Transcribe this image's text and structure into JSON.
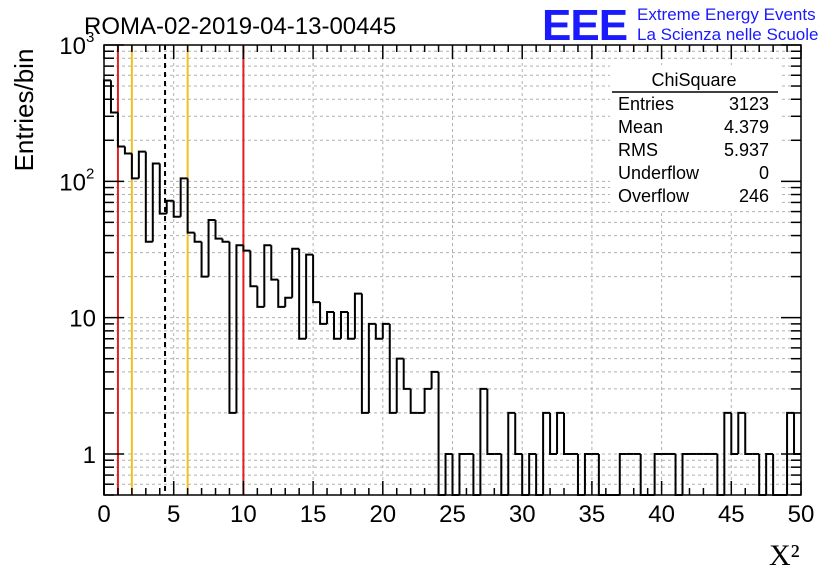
{
  "header": {
    "title": "ROMA-02-2019-04-13-00445",
    "logo": "EEE",
    "logo_line1": "Extreme Energy Events",
    "logo_line2": "La Scienza nelle Scuole",
    "logo_color": "#1a1aff"
  },
  "stats": {
    "name": "ChiSquare",
    "rows": [
      {
        "label": "Entries",
        "value": "3123"
      },
      {
        "label": "Mean",
        "value": "4.379"
      },
      {
        "label": "RMS",
        "value": "5.937"
      },
      {
        "label": "Underflow",
        "value": "0"
      },
      {
        "label": "Overflow",
        "value": "246"
      }
    ]
  },
  "chart_data": {
    "type": "bar",
    "histogram_style": "step",
    "title": "ROMA-02-2019-04-13-00445",
    "xlabel": "X²",
    "ylabel": "Entries/bin",
    "xlim": [
      0,
      50
    ],
    "ylim": [
      0.5,
      1000
    ],
    "yscale": "log",
    "grid": true,
    "bin_width": 0.5,
    "x_ticks": [
      "0",
      "5",
      "10",
      "15",
      "20",
      "25",
      "30",
      "35",
      "40",
      "45",
      "50"
    ],
    "y_ticks": [
      {
        "value": 1,
        "label": "1"
      },
      {
        "value": 10,
        "label": "10"
      },
      {
        "value": 100,
        "label": "10",
        "exp": "2"
      },
      {
        "value": 1000,
        "label": "10",
        "exp": "3"
      }
    ],
    "values": [
      550,
      320,
      180,
      160,
      105,
      165,
      36,
      135,
      58,
      72,
      55,
      105,
      42,
      36,
      20,
      52,
      38,
      36,
      2,
      34,
      31,
      17,
      12,
      34,
      19,
      12,
      14,
      32,
      7,
      29,
      13,
      9,
      11,
      7,
      11,
      7,
      15,
      2,
      9,
      7,
      9,
      2,
      5,
      3,
      2,
      2,
      3,
      4,
      0,
      1,
      0,
      1,
      1,
      0,
      3,
      1,
      1,
      0,
      2,
      1,
      0,
      1,
      0,
      2,
      1,
      2,
      1,
      1,
      0,
      1,
      1,
      0,
      0,
      0,
      1,
      1,
      1,
      0,
      0,
      1,
      1,
      1,
      0,
      1,
      1,
      1,
      1,
      1,
      0,
      2,
      1,
      2,
      1,
      1,
      0,
      1,
      0,
      0,
      2,
      1
    ],
    "reference_lines": [
      {
        "x": 1,
        "color": "#e02020",
        "style": "solid"
      },
      {
        "x": 2,
        "color": "#f0c020",
        "style": "solid"
      },
      {
        "x": 4.379,
        "color": "#000000",
        "style": "dashed"
      },
      {
        "x": 6,
        "color": "#f0c020",
        "style": "solid"
      },
      {
        "x": 10,
        "color": "#e02020",
        "style": "solid"
      }
    ]
  }
}
